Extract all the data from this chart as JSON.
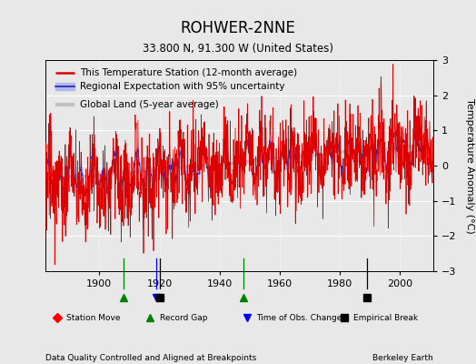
{
  "title": "ROHWER-2NNE",
  "subtitle": "33.800 N, 91.300 W (United States)",
  "ylabel": "Temperature Anomaly (°C)",
  "footer_left": "Data Quality Controlled and Aligned at Breakpoints",
  "footer_right": "Berkeley Earth",
  "xlim": [
    1882,
    2011
  ],
  "ylim": [
    -3,
    3
  ],
  "yticks": [
    -3,
    -2,
    -1,
    0,
    1,
    2,
    3
  ],
  "xticks": [
    1900,
    1920,
    1940,
    1960,
    1980,
    2000
  ],
  "background_color": "#e8e8e8",
  "plot_bg_color": "#e8e8e8",
  "station_color": "#dd0000",
  "regional_color": "#2222bb",
  "regional_fill_color": "#b0b8e8",
  "global_color": "#c0c0c0",
  "seed": 17,
  "start_year": 1882,
  "end_year": 2010,
  "n_per_year": 12,
  "legend_labels": [
    "This Temperature Station (12-month average)",
    "Regional Expectation with 95% uncertainty",
    "Global Land (5-year average)"
  ],
  "marker_events": {
    "record_gaps": [
      1908,
      1948
    ],
    "time_obs_changes": [
      1919
    ],
    "empirical_breaks": [
      1920,
      1989
    ],
    "station_moves": []
  },
  "title_fontsize": 12,
  "subtitle_fontsize": 8.5,
  "axis_fontsize": 8,
  "legend_fontsize": 7.5
}
